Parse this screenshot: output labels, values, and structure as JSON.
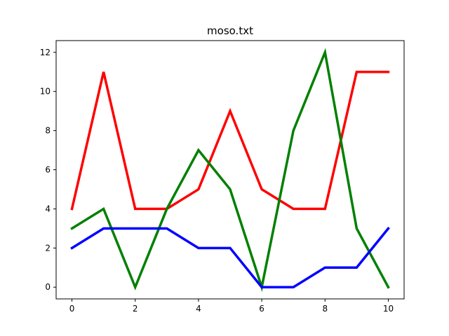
{
  "chart_data": {
    "type": "line",
    "title": "moso.txt",
    "xlabel": "",
    "ylabel": "",
    "x": [
      0,
      1,
      2,
      3,
      4,
      5,
      6,
      7,
      8,
      9,
      10
    ],
    "xticks": [
      0,
      2,
      4,
      6,
      8,
      10
    ],
    "yticks": [
      0,
      2,
      4,
      6,
      8,
      10,
      12
    ],
    "xlim": [
      -0.5,
      10.5
    ],
    "ylim": [
      -0.6,
      12.6
    ],
    "grid": false,
    "legend": "none",
    "series": [
      {
        "color": "#ff0000",
        "values": [
          4,
          11,
          4,
          4,
          5,
          9,
          5,
          4,
          4,
          11,
          11
        ]
      },
      {
        "color": "#008000",
        "values": [
          3,
          4,
          0,
          4,
          7,
          5,
          0,
          8,
          12,
          3,
          0
        ]
      },
      {
        "color": "#0000ff",
        "values": [
          2,
          3,
          3,
          3,
          2,
          2,
          0,
          0,
          1,
          1,
          3
        ]
      }
    ]
  }
}
